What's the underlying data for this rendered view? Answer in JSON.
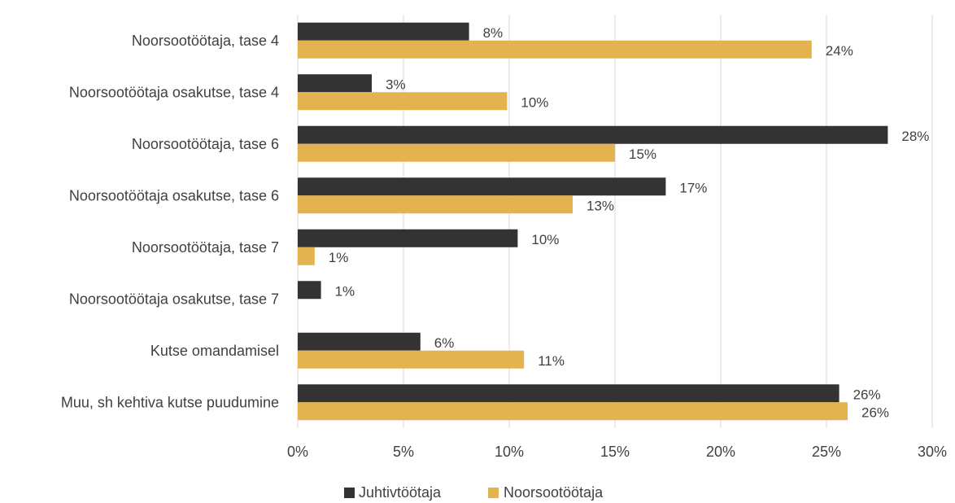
{
  "chart_data": {
    "type": "bar",
    "orientation": "horizontal",
    "categories": [
      "Noorsootöötaja, tase 4",
      "Noorsootöötaja osakutse, tase 4",
      "Noorsootöötaja, tase 6",
      "Noorsootöötaja osakutse, tase 6",
      "Noorsootöötaja, tase 7",
      "Noorsootöötaja osakutse, tase 7",
      "Kutse omandamisel",
      "Muu, sh kehtiva kutse puudumine"
    ],
    "series": [
      {
        "name": "Juhtivtöötaja",
        "color": "#333333",
        "values": [
          8.1,
          3.5,
          27.9,
          17.4,
          10.4,
          1.1,
          5.8,
          25.6
        ],
        "labels": [
          "8%",
          "3%",
          "28%",
          "17%",
          "10%",
          "1%",
          "6%",
          "26%"
        ]
      },
      {
        "name": "Noorsootöötaja",
        "color": "#e3b350",
        "values": [
          24.3,
          9.9,
          15.0,
          13.0,
          0.8,
          null,
          10.7,
          26.0
        ],
        "labels": [
          "24%",
          "10%",
          "15%",
          "13%",
          "1%",
          "",
          "11%",
          "26%"
        ]
      }
    ],
    "xlim": [
      0,
      30
    ],
    "xticks": [
      "0%",
      "5%",
      "10%",
      "15%",
      "20%",
      "25%",
      "30%"
    ],
    "grid": true,
    "legend_position": "bottom",
    "title": "",
    "xlabel": "",
    "ylabel": ""
  }
}
